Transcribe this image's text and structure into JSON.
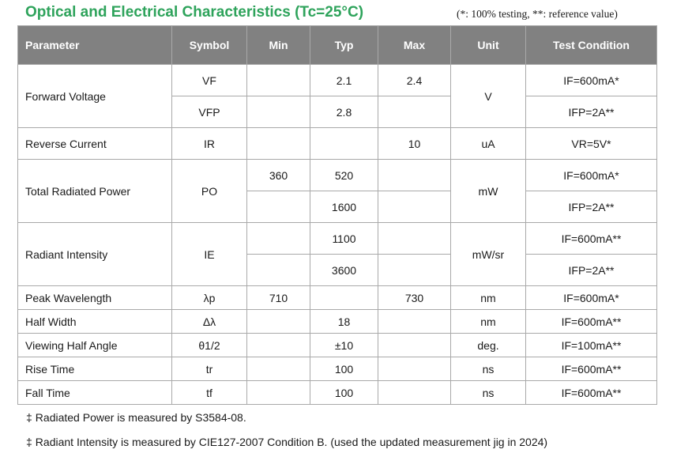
{
  "title": "Optical and Electrical Characteristics (Tc=25°C)",
  "note": "(*: 100% testing, **: reference value)",
  "headers": {
    "parameter": "Parameter",
    "symbol": "Symbol",
    "min": "Min",
    "typ": "Typ",
    "max": "Max",
    "unit": "Unit",
    "condition": "Test Condition"
  },
  "rows": {
    "forward_voltage": {
      "parameter": "Forward Voltage",
      "unit": "V",
      "sub": [
        {
          "symbol": "VF",
          "min": "",
          "typ": "2.1",
          "max": "2.4",
          "condition": "IF=600mA*"
        },
        {
          "symbol": "VFP",
          "min": "",
          "typ": "2.8",
          "max": "",
          "condition": "IFP=2A**"
        }
      ]
    },
    "reverse_current": {
      "parameter": "Reverse Current",
      "symbol": "IR",
      "min": "",
      "typ": "",
      "max": "10",
      "unit": "uA",
      "condition": "VR=5V*"
    },
    "total_radiated_power": {
      "parameter": "Total Radiated Power",
      "symbol": "PO",
      "unit": "mW",
      "sub": [
        {
          "min": "360",
          "typ": "520",
          "max": "",
          "condition": "IF=600mA*"
        },
        {
          "min": "",
          "typ": "1600",
          "max": "",
          "condition": "IFP=2A**"
        }
      ]
    },
    "radiant_intensity": {
      "parameter": "Radiant Intensity",
      "symbol": "IE",
      "unit": "mW/sr",
      "sub": [
        {
          "min": "",
          "typ": "1100",
          "max": "",
          "condition": "IF=600mA**"
        },
        {
          "min": "",
          "typ": "3600",
          "max": "",
          "condition": "IFP=2A**"
        }
      ]
    },
    "peak_wavelength": {
      "parameter": "Peak Wavelength",
      "symbol": "λp",
      "min": "710",
      "typ": "",
      "max": "730",
      "unit": "nm",
      "condition": "IF=600mA*"
    },
    "half_width": {
      "parameter": "Half Width",
      "symbol": "Δλ",
      "min": "",
      "typ": "18",
      "max": "",
      "unit": "nm",
      "condition": "IF=600mA**"
    },
    "viewing_half_angle": {
      "parameter": "Viewing Half Angle",
      "symbol": "θ1/2",
      "min": "",
      "typ": "±10",
      "max": "",
      "unit": "deg.",
      "condition": "IF=100mA**"
    },
    "rise_time": {
      "parameter": "Rise Time",
      "symbol": "tr",
      "min": "",
      "typ": "100",
      "max": "",
      "unit": "ns",
      "condition": "IF=600mA**"
    },
    "fall_time": {
      "parameter": "Fall Time",
      "symbol": "tf",
      "min": "",
      "typ": "100",
      "max": "",
      "unit": "ns",
      "condition": "IF=600mA**"
    }
  },
  "footnotes": [
    {
      "mark": "‡",
      "text": "Radiated Power is measured by S3584-08."
    },
    {
      "mark": "‡",
      "text": "Radiant Intensity is measured by CIE127-2007 Condition B. (used the updated measurement jig in 2024)"
    }
  ]
}
